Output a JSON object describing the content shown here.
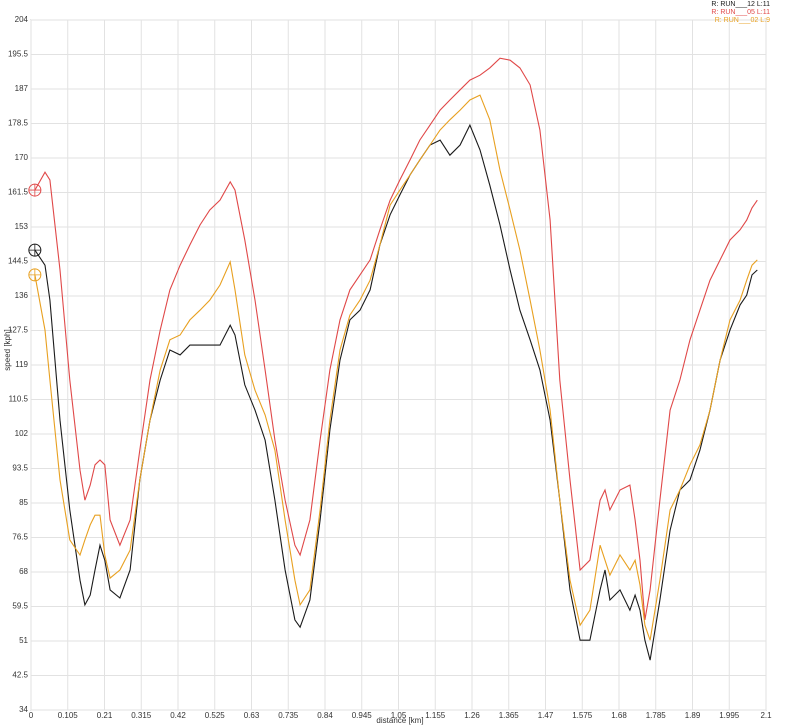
{
  "chart_data": {
    "type": "line",
    "x_label": "distance [km]",
    "y_label": "speed [kph]",
    "x": [
      0.011,
      0.04,
      0.054,
      0.083,
      0.111,
      0.14,
      0.154,
      0.169,
      0.183,
      0.197,
      0.211,
      0.226,
      0.254,
      0.283,
      0.311,
      0.34,
      0.369,
      0.397,
      0.426,
      0.454,
      0.483,
      0.511,
      0.54,
      0.569,
      0.583,
      0.611,
      0.64,
      0.669,
      0.697,
      0.726,
      0.754,
      0.769,
      0.797,
      0.826,
      0.854,
      0.883,
      0.911,
      0.94,
      0.969,
      0.997,
      1.026,
      1.054,
      1.083,
      1.111,
      1.14,
      1.169,
      1.197,
      1.226,
      1.254,
      1.283,
      1.311,
      1.34,
      1.369,
      1.397,
      1.426,
      1.454,
      1.483,
      1.511,
      1.54,
      1.569,
      1.597,
      1.626,
      1.64,
      1.654,
      1.683,
      1.711,
      1.726,
      1.74,
      1.754,
      1.769,
      1.797,
      1.826,
      1.854,
      1.883,
      1.911,
      1.94,
      1.969,
      1.997,
      2.026,
      2.045,
      2.06,
      2.075
    ],
    "series": [
      {
        "name": "R: RUN___12  L:11",
        "color": "#1a1a1a",
        "values": [
          147.3,
          143.6,
          135,
          105.4,
          83.3,
          66,
          59.9,
          62.3,
          68.5,
          74.6,
          70.9,
          63.6,
          61.6,
          68.5,
          90.7,
          105.4,
          115.3,
          122.7,
          121.5,
          123.9,
          123.9,
          123.9,
          123.9,
          128.8,
          126.4,
          114.1,
          107.9,
          100.5,
          85.7,
          68.5,
          56.2,
          54.4,
          61.1,
          80.8,
          103,
          120.2,
          130.1,
          132.5,
          137.5,
          148.6,
          156,
          160.9,
          165.8,
          169.5,
          173.2,
          174.4,
          170.7,
          173.2,
          178.1,
          172,
          163.3,
          153.5,
          142.4,
          132.5,
          125.2,
          117.8,
          105.4,
          85.7,
          63.6,
          51.2,
          51.2,
          63.6,
          68.5,
          61.1,
          63.6,
          58.6,
          62.3,
          58.6,
          51.2,
          46.3,
          61.1,
          78.3,
          88.2,
          90.7,
          98,
          107.9,
          120.2,
          127.6,
          133.8,
          136.2,
          141.2,
          142.4
        ]
      },
      {
        "name": "R: RUN___05  L:11",
        "color": "#e04848",
        "values": [
          162.1,
          166.5,
          164.6,
          142.4,
          115.3,
          93.1,
          85.7,
          89.4,
          94.4,
          95.6,
          94.4,
          80.8,
          74.6,
          80.8,
          98,
          115.3,
          127.6,
          137.5,
          143.6,
          148.6,
          153.5,
          157.2,
          159.6,
          164.1,
          162.1,
          149.8,
          135,
          117.8,
          100.5,
          85.7,
          74.6,
          72.2,
          80.8,
          100.5,
          117.8,
          130.1,
          137.5,
          141.2,
          144.9,
          152.3,
          159.6,
          164.6,
          169.5,
          174.4,
          178.1,
          181.8,
          184.3,
          186.8,
          189.2,
          190.4,
          192.2,
          194.6,
          194.1,
          192.2,
          188,
          176.9,
          154.7,
          115.3,
          90.7,
          68.5,
          70.9,
          85.7,
          88.2,
          83.3,
          88.2,
          89.4,
          80.8,
          70.9,
          56.2,
          63.6,
          85.7,
          107.9,
          115.3,
          125.2,
          132.5,
          139.9,
          144.9,
          149.8,
          152.3,
          154.7,
          157.7,
          159.6
        ]
      },
      {
        "name": "R: RUN___02  L:9",
        "color": "#e8a020",
        "values": [
          141.2,
          127.6,
          115.3,
          90.7,
          75.9,
          72.2,
          75.9,
          79.6,
          82,
          82,
          72.2,
          66.5,
          68.5,
          73.4,
          90.7,
          105.4,
          117.8,
          125.2,
          126.4,
          130.1,
          132.5,
          135,
          138.7,
          144.4,
          137.5,
          121.5,
          112.8,
          106.7,
          98,
          80.8,
          66,
          59.9,
          63.6,
          83.3,
          105.4,
          122.7,
          131.3,
          135,
          139.9,
          148.6,
          158.4,
          162.1,
          165.8,
          169.5,
          173.2,
          176.9,
          179.4,
          181.8,
          184.3,
          185.5,
          179.4,
          167,
          157.2,
          147.3,
          135,
          122.7,
          107.9,
          85.7,
          66,
          54.9,
          58.6,
          74.6,
          70.9,
          67.2,
          72.2,
          68.5,
          70.9,
          64.8,
          54.9,
          51.2,
          66,
          83.3,
          88.2,
          94.4,
          99.3,
          107.9,
          120.2,
          130.1,
          135,
          139.9,
          143.6,
          144.9
        ]
      }
    ],
    "xlim": [
      0,
      2.1
    ],
    "ylim": [
      34,
      204
    ],
    "xticks": [
      0,
      0.105,
      0.21,
      0.315,
      0.42,
      0.525,
      0.63,
      0.735,
      0.84,
      0.945,
      1.05,
      1.155,
      1.26,
      1.365,
      1.47,
      1.575,
      1.68,
      1.785,
      1.89,
      1.995,
      2.1
    ],
    "yticks": [
      34,
      42.5,
      51,
      59.5,
      68,
      76.5,
      85,
      93.5,
      102,
      110.5,
      119,
      127.5,
      136,
      144.5,
      153,
      161.5,
      170,
      178.5,
      187,
      195.5,
      204
    ],
    "grid": true,
    "legend": "top-right"
  }
}
